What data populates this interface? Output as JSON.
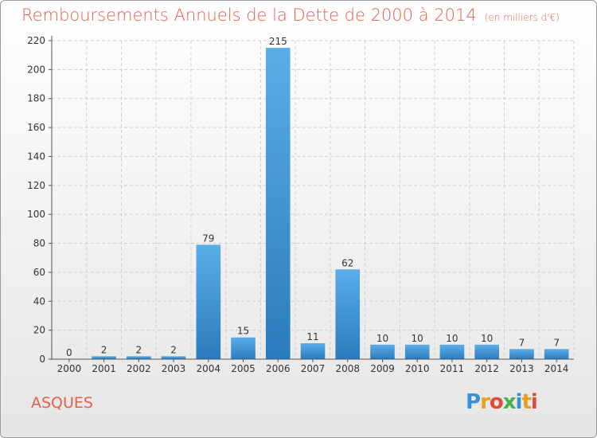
{
  "header": {
    "title": "Remboursements Annuels de la Dette de 2000 à 2014",
    "unit": "(en milliers d'€)"
  },
  "footer": {
    "commune": "ASQUES",
    "logo": "Proxiti"
  },
  "colors": {
    "title": "#e0604f",
    "bar_top": "#5aaee8",
    "bar_bottom": "#2a7bbd",
    "grid": "#cfcfcf"
  },
  "chart_data": {
    "type": "bar",
    "title": "Remboursements Annuels de la Dette de 2000 à 2014",
    "xlabel": "",
    "ylabel": "",
    "categories": [
      "2000",
      "2001",
      "2002",
      "2003",
      "2004",
      "2005",
      "2006",
      "2007",
      "2008",
      "2009",
      "2010",
      "2011",
      "2012",
      "2013",
      "2014"
    ],
    "values": [
      0,
      2,
      2,
      2,
      79,
      15,
      215,
      11,
      62,
      10,
      10,
      10,
      10,
      7,
      7
    ],
    "ylim": [
      0,
      220
    ],
    "yticks": [
      0,
      20,
      40,
      60,
      80,
      100,
      120,
      140,
      160,
      180,
      200,
      220
    ],
    "grid": true,
    "data_labels": true
  }
}
